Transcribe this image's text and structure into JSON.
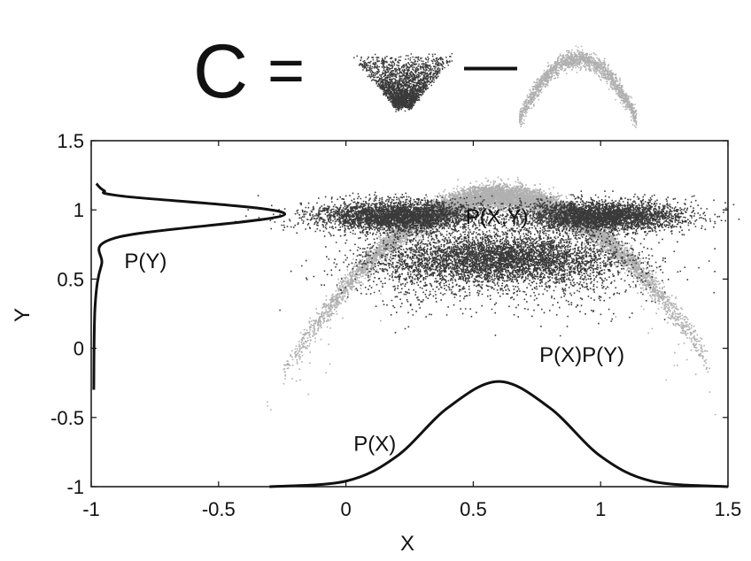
{
  "equation": {
    "lhs": "C",
    "equals": "=",
    "minus": "—"
  },
  "chart_data": {
    "type": "scatter",
    "title": "",
    "xlabel": "X",
    "ylabel": "Y",
    "xlim": [
      -1,
      1.5
    ],
    "ylim": [
      -1,
      1.5
    ],
    "xticks": [
      -1,
      -0.5,
      0,
      0.5,
      1,
      1.5
    ],
    "xtick_labels": [
      "-1",
      "-0.5",
      "0",
      "0.5",
      "1",
      "1.5"
    ],
    "yticks": [
      -1,
      -0.5,
      0,
      0.5,
      1,
      1.5
    ],
    "ytick_labels": [
      "-1",
      "-0.5",
      "0",
      "0.5",
      "1",
      "1.5"
    ],
    "grid": false,
    "colors": {
      "joint": "#3a3a3a",
      "product": "#b0b0b0",
      "marginal": "#111111"
    },
    "series": [
      {
        "name": "P(X,Y)",
        "kind": "scatter",
        "points": [
          [
            0.2,
            0.96
          ],
          [
            1.0,
            0.96
          ],
          [
            0.6,
            0.65
          ],
          [
            0.3,
            0.55
          ],
          [
            0.9,
            0.55
          ]
        ]
      },
      {
        "name": "P(X)P(Y)",
        "kind": "scatter",
        "points": [
          [
            -0.15,
            0.1
          ],
          [
            0.2,
            0.75
          ],
          [
            0.6,
            1.1
          ],
          [
            1.0,
            0.75
          ],
          [
            1.3,
            0.1
          ]
        ]
      },
      {
        "name": "P(X)",
        "kind": "line",
        "x": [
          -0.3,
          0.0,
          0.2,
          0.4,
          0.6,
          0.8,
          1.0,
          1.2,
          1.5
        ],
        "y": [
          -1.0,
          -0.96,
          -0.78,
          -0.43,
          -0.24,
          -0.43,
          -0.78,
          -0.96,
          -1.0
        ]
      },
      {
        "name": "P(Y)",
        "kind": "line",
        "x": [
          -0.99,
          -0.985,
          -0.96,
          -0.9,
          -0.24,
          -0.88,
          -0.95,
          -0.98
        ],
        "y": [
          -0.3,
          0.3,
          0.6,
          0.8,
          0.97,
          1.1,
          1.14,
          1.19
        ]
      }
    ],
    "annotations": [
      {
        "text": "P(X,Y)",
        "x": 0.47,
        "y": 0.9
      },
      {
        "text": "P(Y)",
        "x": -0.87,
        "y": 0.58
      },
      {
        "text": "P(X)P(Y)",
        "x": 0.76,
        "y": -0.1
      },
      {
        "text": "P(X)",
        "x": 0.03,
        "y": -0.74
      }
    ]
  }
}
